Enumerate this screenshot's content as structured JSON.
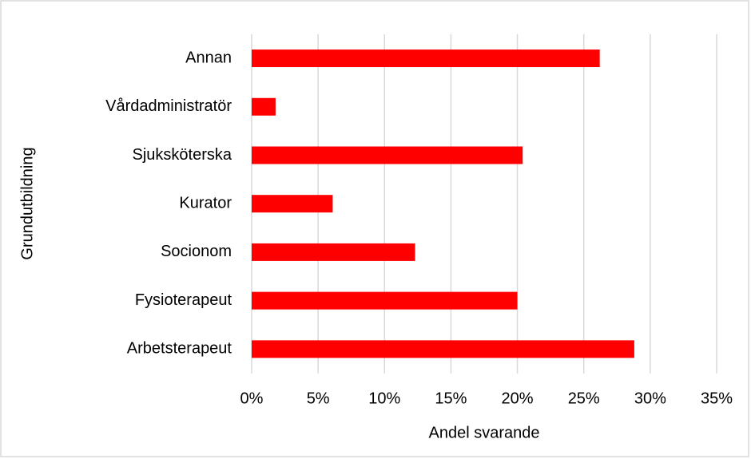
{
  "chart_data": {
    "type": "bar",
    "orientation": "horizontal",
    "categories": [
      "Annan",
      "Vårdadministratör",
      "Sjuksköterska",
      "Kurator",
      "Socionom",
      "Fysioterapeut",
      "Arbetsterapeut"
    ],
    "values": [
      26.2,
      1.8,
      20.4,
      6.1,
      12.3,
      20.0,
      28.8
    ],
    "color": "#ff0000",
    "xlabel": "Andel svarande",
    "ylabel": "Grundutbildning",
    "xlim": [
      0,
      35
    ],
    "xticks": [
      {
        "value": 0,
        "label": "0%"
      },
      {
        "value": 5,
        "label": "5%"
      },
      {
        "value": 10,
        "label": "10%"
      },
      {
        "value": 15,
        "label": "15%"
      },
      {
        "value": 20,
        "label": "20%"
      },
      {
        "value": 25,
        "label": "25%"
      },
      {
        "value": 30,
        "label": "30%"
      },
      {
        "value": 35,
        "label": "35%"
      }
    ],
    "grid": true
  }
}
